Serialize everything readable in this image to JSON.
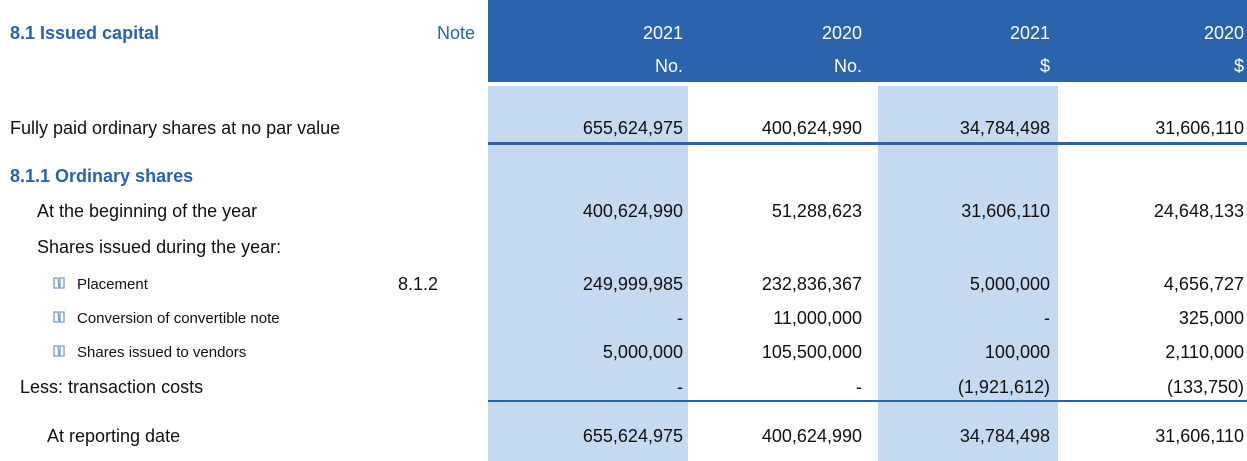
{
  "header": {
    "title": "8.1  Issued capital",
    "note_label": "Note",
    "columns": [
      {
        "year": "2021",
        "unit": "No."
      },
      {
        "year": "2020",
        "unit": "No."
      },
      {
        "year": "2021",
        "unit": "$"
      },
      {
        "year": "2020",
        "unit": "$"
      }
    ]
  },
  "rows": [
    {
      "label": "Fully paid ordinary shares at no par value",
      "values": [
        "655,624,975",
        "400,624,990",
        "34,784,498",
        "31,606,110"
      ]
    },
    {
      "label": "8.1.1 Ordinary shares"
    },
    {
      "label": "At the beginning of the year",
      "values": [
        "400,624,990",
        "51,288,623",
        "31,606,110",
        "24,648,133"
      ]
    },
    {
      "label": "Shares issued during the year:"
    },
    {
      "label": "Placement",
      "note": "8.1.2",
      "values": [
        "249,999,985",
        "232,836,367",
        "5,000,000",
        "4,656,727"
      ]
    },
    {
      "label": "Conversion of convertible note",
      "values": [
        "-",
        "11,000,000",
        "-",
        "325,000"
      ]
    },
    {
      "label": "Shares issued to vendors",
      "values": [
        "5,000,000",
        "105,500,000",
        "100,000",
        "2,110,000"
      ]
    },
    {
      "label": "Less: transaction costs",
      "values": [
        "-",
        "-",
        "(1,921,612)",
        "(133,750)"
      ]
    },
    {
      "label": "At reporting date",
      "values": [
        "655,624,975",
        "400,624,990",
        "34,784,498",
        "31,606,110"
      ]
    }
  ]
}
